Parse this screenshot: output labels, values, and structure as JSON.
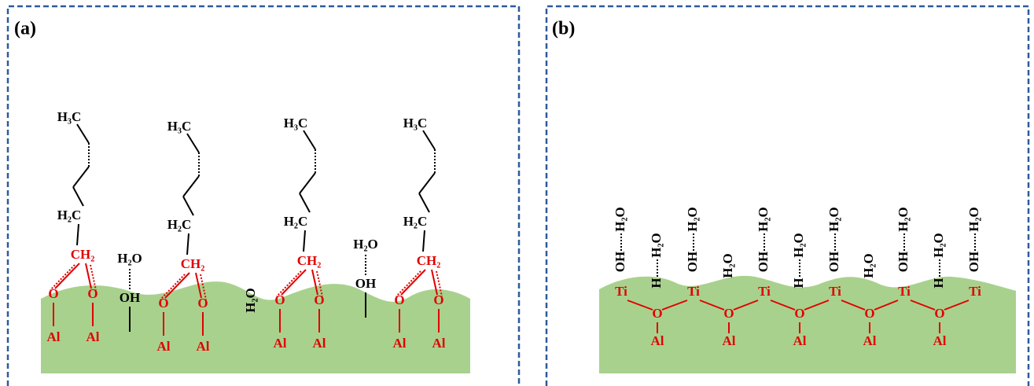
{
  "panel_a": {
    "label": "(a)",
    "chains": [
      {
        "head": "H₃C",
        "middle": "H₂C",
        "anchor": "CH₂",
        "oxygens": [
          "O",
          "O"
        ],
        "metals": [
          "Al",
          "Al"
        ]
      },
      {
        "head": "H₃C",
        "middle": "H₂C",
        "anchor": "CH₂",
        "oxygens": [
          "O",
          "O"
        ],
        "metals": [
          "Al",
          "Al"
        ]
      },
      {
        "head": "H₃C",
        "middle": "H₂C",
        "anchor": "CH₂",
        "oxygens": [
          "O",
          "O"
        ],
        "metals": [
          "Al",
          "Al"
        ]
      },
      {
        "head": "H₃C",
        "middle": "H₂C",
        "anchor": "CH₂",
        "oxygens": [
          "O",
          "O"
        ],
        "metals": [
          "Al",
          "Al"
        ]
      }
    ],
    "hydroxyls": [
      {
        "water": "H₂O",
        "group": "OH"
      },
      {
        "water": "H₂O",
        "group": "OH"
      }
    ],
    "free_water": "H₂O"
  },
  "panel_b": {
    "label": "(b)",
    "titanium": [
      "Ti",
      "Ti",
      "Ti",
      "Ti",
      "Ti",
      "Ti"
    ],
    "bridges": [
      {
        "oxygen": "O",
        "metal": "Al"
      },
      {
        "oxygen": "O",
        "metal": "Al"
      },
      {
        "oxygen": "O",
        "metal": "Al"
      },
      {
        "oxygen": "O",
        "metal": "Al"
      },
      {
        "oxygen": "O",
        "metal": "Al"
      }
    ],
    "sites": [
      {
        "group": "OH",
        "water": "H₂O"
      },
      {
        "group": "H",
        "water": "H₂O"
      },
      {
        "group": "OH",
        "water": "H₂O"
      },
      {
        "water": "H₂O"
      },
      {
        "group": "OH",
        "water": "H₂O"
      },
      {
        "group": "H",
        "water": "H₂O"
      },
      {
        "group": "OH",
        "water": "H₂O"
      },
      {
        "water": "H₂O"
      },
      {
        "group": "OH",
        "water": "H₂O"
      },
      {
        "group": "H",
        "water": "H₂O"
      },
      {
        "group": "OH",
        "water": "H₂O"
      }
    ]
  }
}
